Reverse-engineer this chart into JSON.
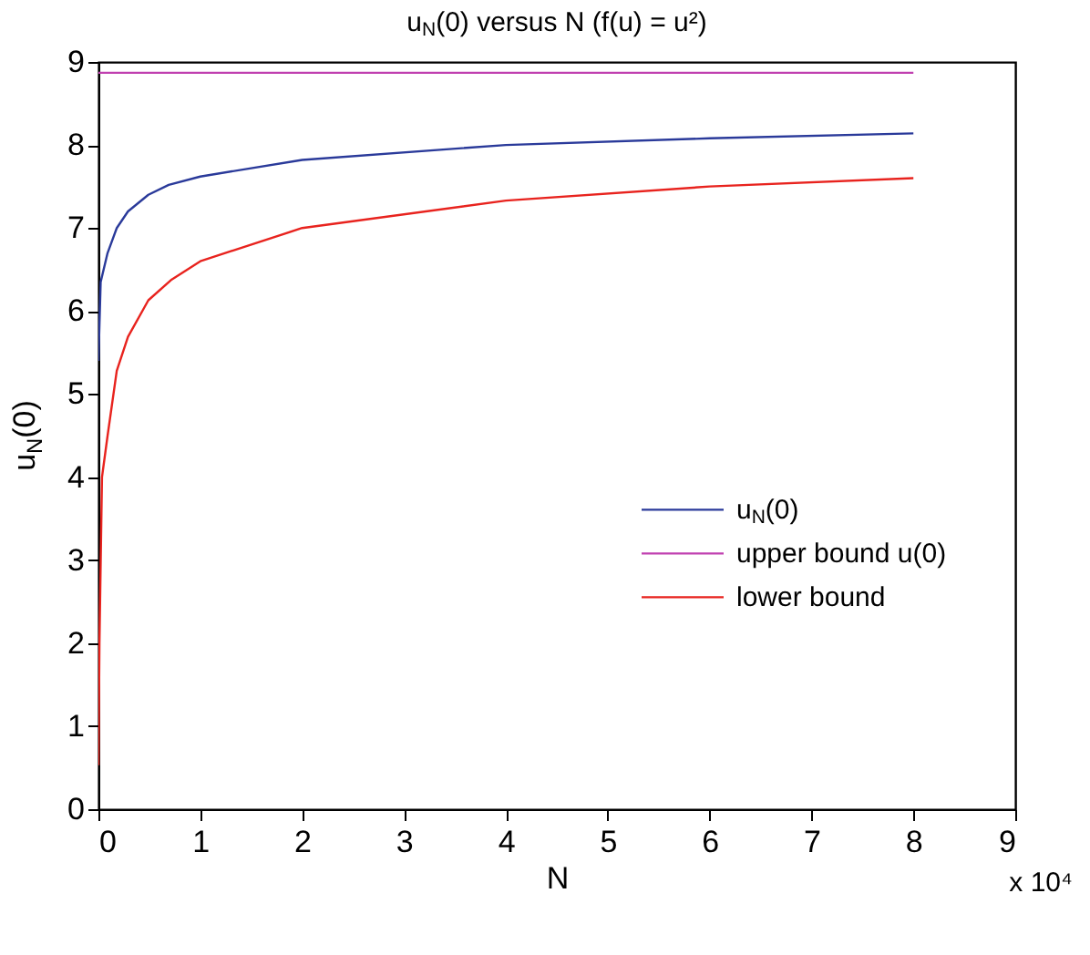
{
  "chart_data": {
    "type": "line",
    "title": "u$_{N}$(0) versus N (f(u) = u²)",
    "xlabel": "N",
    "ylabel": "u$_{N}$(0)",
    "xlim": [
      0,
      9
    ],
    "xticks": [
      0,
      1,
      2,
      3,
      4,
      5,
      6,
      7,
      8,
      9
    ],
    "ylim": [
      0,
      9
    ],
    "yticks": [
      0,
      1,
      2,
      3,
      4,
      5,
      6,
      7,
      8,
      9
    ],
    "annotations": [
      "x 10⁴"
    ],
    "grid": false,
    "legend": "right",
    "line_style": "solid",
    "marker": "none",
    "series": [
      {
        "name": "u$_{N}$(0)",
        "color": "#2a3a9a",
        "x": [
          0,
          0.022,
          0.09,
          0.18,
          0.29,
          0.49,
          0.69,
          1,
          2,
          4,
          6,
          8
        ],
        "values": [
          5.4,
          6.35,
          6.7,
          7.0,
          7.2,
          7.4,
          7.52,
          7.62,
          7.82,
          8.0,
          8.08,
          8.14
        ]
      },
      {
        "name": "upper bound u(0)",
        "color": "#c040b0",
        "x": [
          0,
          8
        ],
        "values": [
          8.87,
          8.87
        ]
      },
      {
        "name": "lower bound",
        "color": "#e8231e",
        "x": [
          0,
          0.01,
          0.035,
          0.09,
          0.18,
          0.29,
          0.49,
          0.72,
          1,
          2,
          4,
          6,
          8
        ],
        "values": [
          0.53,
          2.0,
          4.0,
          4.5,
          5.28,
          5.69,
          6.13,
          6.38,
          6.6,
          7.0,
          7.33,
          7.5,
          7.6
        ]
      }
    ]
  }
}
